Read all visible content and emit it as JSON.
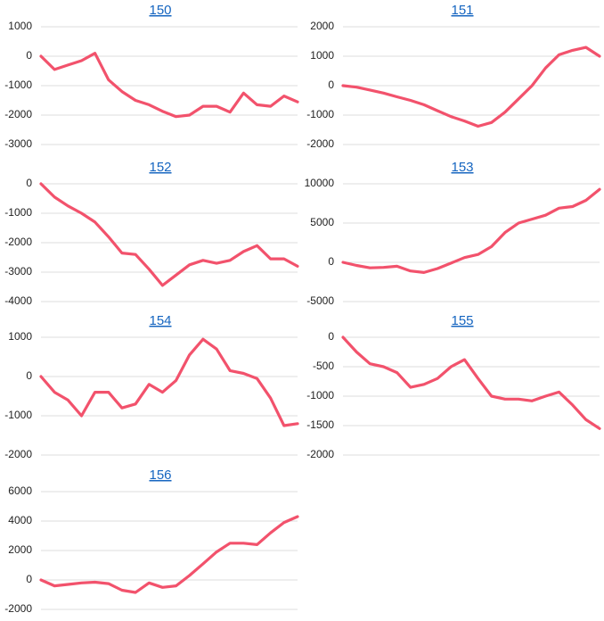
{
  "chart_data": [
    {
      "type": "line",
      "title": "150",
      "ylim": [
        -3000,
        1000
      ],
      "yticks": [
        -3000,
        -2000,
        -1000,
        0,
        1000
      ],
      "grid": true,
      "color": "#f2526c",
      "values": [
        0,
        -450,
        -300,
        -150,
        100,
        -800,
        -1200,
        -1500,
        -1650,
        -1870,
        -2050,
        -2000,
        -1700,
        -1700,
        -1900,
        -1250,
        -1650,
        -1700,
        -1350,
        -1550
      ]
    },
    {
      "type": "line",
      "title": "151",
      "ylim": [
        -2000,
        2000
      ],
      "yticks": [
        -2000,
        -1000,
        0,
        1000,
        2000
      ],
      "grid": true,
      "color": "#f2526c",
      "values": [
        0,
        -50,
        -150,
        -250,
        -380,
        -500,
        -650,
        -850,
        -1050,
        -1200,
        -1380,
        -1250,
        -900,
        -450,
        0,
        600,
        1050,
        1200,
        1300,
        1000
      ]
    },
    {
      "type": "line",
      "title": "152",
      "ylim": [
        -4000,
        0
      ],
      "yticks": [
        -4000,
        -3000,
        -2000,
        -1000,
        0
      ],
      "grid": true,
      "color": "#f2526c",
      "values": [
        0,
        -450,
        -750,
        -1000,
        -1300,
        -1800,
        -2350,
        -2400,
        -2900,
        -3450,
        -3100,
        -2750,
        -2600,
        -2700,
        -2600,
        -2300,
        -2100,
        -2550,
        -2550,
        -2800
      ]
    },
    {
      "type": "line",
      "title": "153",
      "ylim": [
        -5000,
        10000
      ],
      "yticks": [
        -5000,
        0,
        5000,
        10000
      ],
      "grid": true,
      "color": "#f2526c",
      "values": [
        0,
        -400,
        -700,
        -650,
        -500,
        -1100,
        -1300,
        -800,
        -100,
        600,
        1000,
        2000,
        3800,
        5000,
        5500,
        6000,
        6900,
        7100,
        7900,
        9300
      ]
    },
    {
      "type": "line",
      "title": "154",
      "ylim": [
        -2000,
        1000
      ],
      "yticks": [
        -2000,
        -1000,
        0,
        1000
      ],
      "grid": true,
      "color": "#f2526c",
      "values": [
        0,
        -400,
        -600,
        -1000,
        -400,
        -400,
        -800,
        -700,
        -200,
        -400,
        -100,
        550,
        950,
        700,
        150,
        80,
        -50,
        -550,
        -1250,
        -1200
      ]
    },
    {
      "type": "line",
      "title": "155",
      "ylim": [
        -2000,
        0
      ],
      "yticks": [
        -2000,
        -1500,
        -1000,
        -500,
        0
      ],
      "grid": true,
      "color": "#f2526c",
      "values": [
        0,
        -250,
        -450,
        -500,
        -600,
        -850,
        -800,
        -700,
        -500,
        -380,
        -700,
        -1000,
        -1050,
        -1050,
        -1080,
        -1000,
        -930,
        -1150,
        -1400,
        -1550
      ]
    },
    {
      "type": "line",
      "title": "156",
      "ylim": [
        -2000,
        6000
      ],
      "yticks": [
        -2000,
        0,
        2000,
        4000,
        6000
      ],
      "grid": true,
      "color": "#f2526c",
      "values": [
        0,
        -400,
        -300,
        -200,
        -150,
        -250,
        -700,
        -850,
        -200,
        -500,
        -400,
        300,
        1100,
        1900,
        2500,
        2500,
        2400,
        3200,
        3900,
        4300
      ]
    }
  ]
}
